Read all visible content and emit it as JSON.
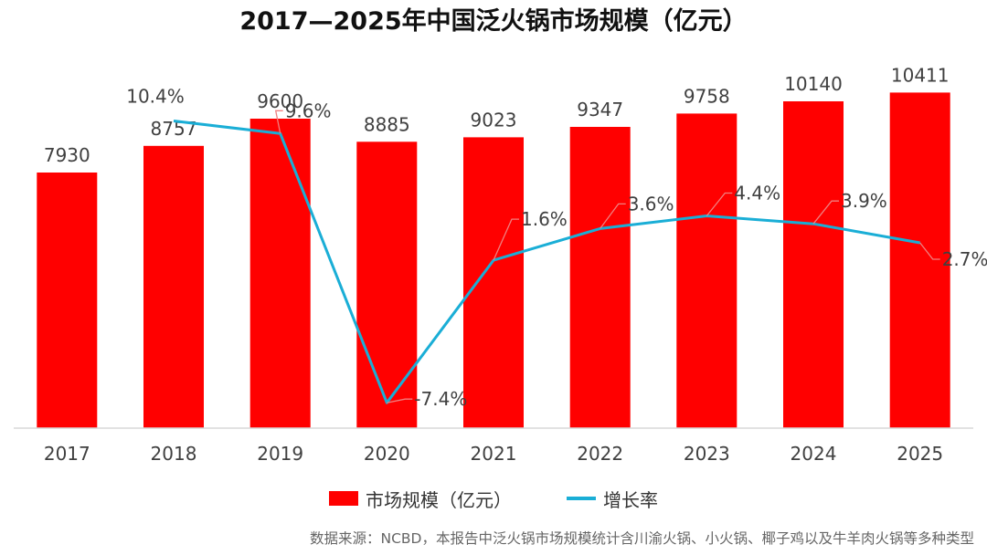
{
  "chart_data": {
    "type": "bar",
    "title": "2017—2025年中国泛火锅市场规模（亿元）",
    "categories": [
      "2017",
      "2018",
      "2019",
      "2020",
      "2021",
      "2022",
      "2023",
      "2024",
      "2025"
    ],
    "series": [
      {
        "name": "市场规模（亿元）",
        "type": "bar",
        "axis": "left",
        "values": [
          7930,
          8757,
          9600,
          8885,
          9023,
          9347,
          9758,
          10140,
          10411
        ],
        "labels": [
          "7930",
          "8757",
          "9600",
          "8885",
          "9023",
          "9347",
          "9758",
          "10140",
          "10411"
        ]
      },
      {
        "name": "增长率",
        "type": "line",
        "axis": "right",
        "values": [
          null,
          10.4,
          9.6,
          -7.4,
          1.6,
          3.6,
          4.4,
          3.9,
          2.7
        ],
        "labels": [
          "",
          "10.4%",
          "9.6%",
          "-7.4%",
          "1.6%",
          "3.6%",
          "4.4%",
          "3.9%",
          "2.7%"
        ]
      }
    ],
    "ylim_left": [
      0,
      11300
    ],
    "ylim_right": [
      -9,
      14
    ],
    "grid": false,
    "legend_position": "bottom"
  },
  "colors": {
    "bar": "#ff0000",
    "line": "#1aaed6",
    "leader": "#f08080",
    "axis": "#d9d9d9",
    "text": "#404040"
  },
  "source_note": "数据来源：NCBD，本报告中泛火锅市场规模统计含川渝火锅、小火锅、椰子鸡以及牛羊肉火锅等多种类型"
}
